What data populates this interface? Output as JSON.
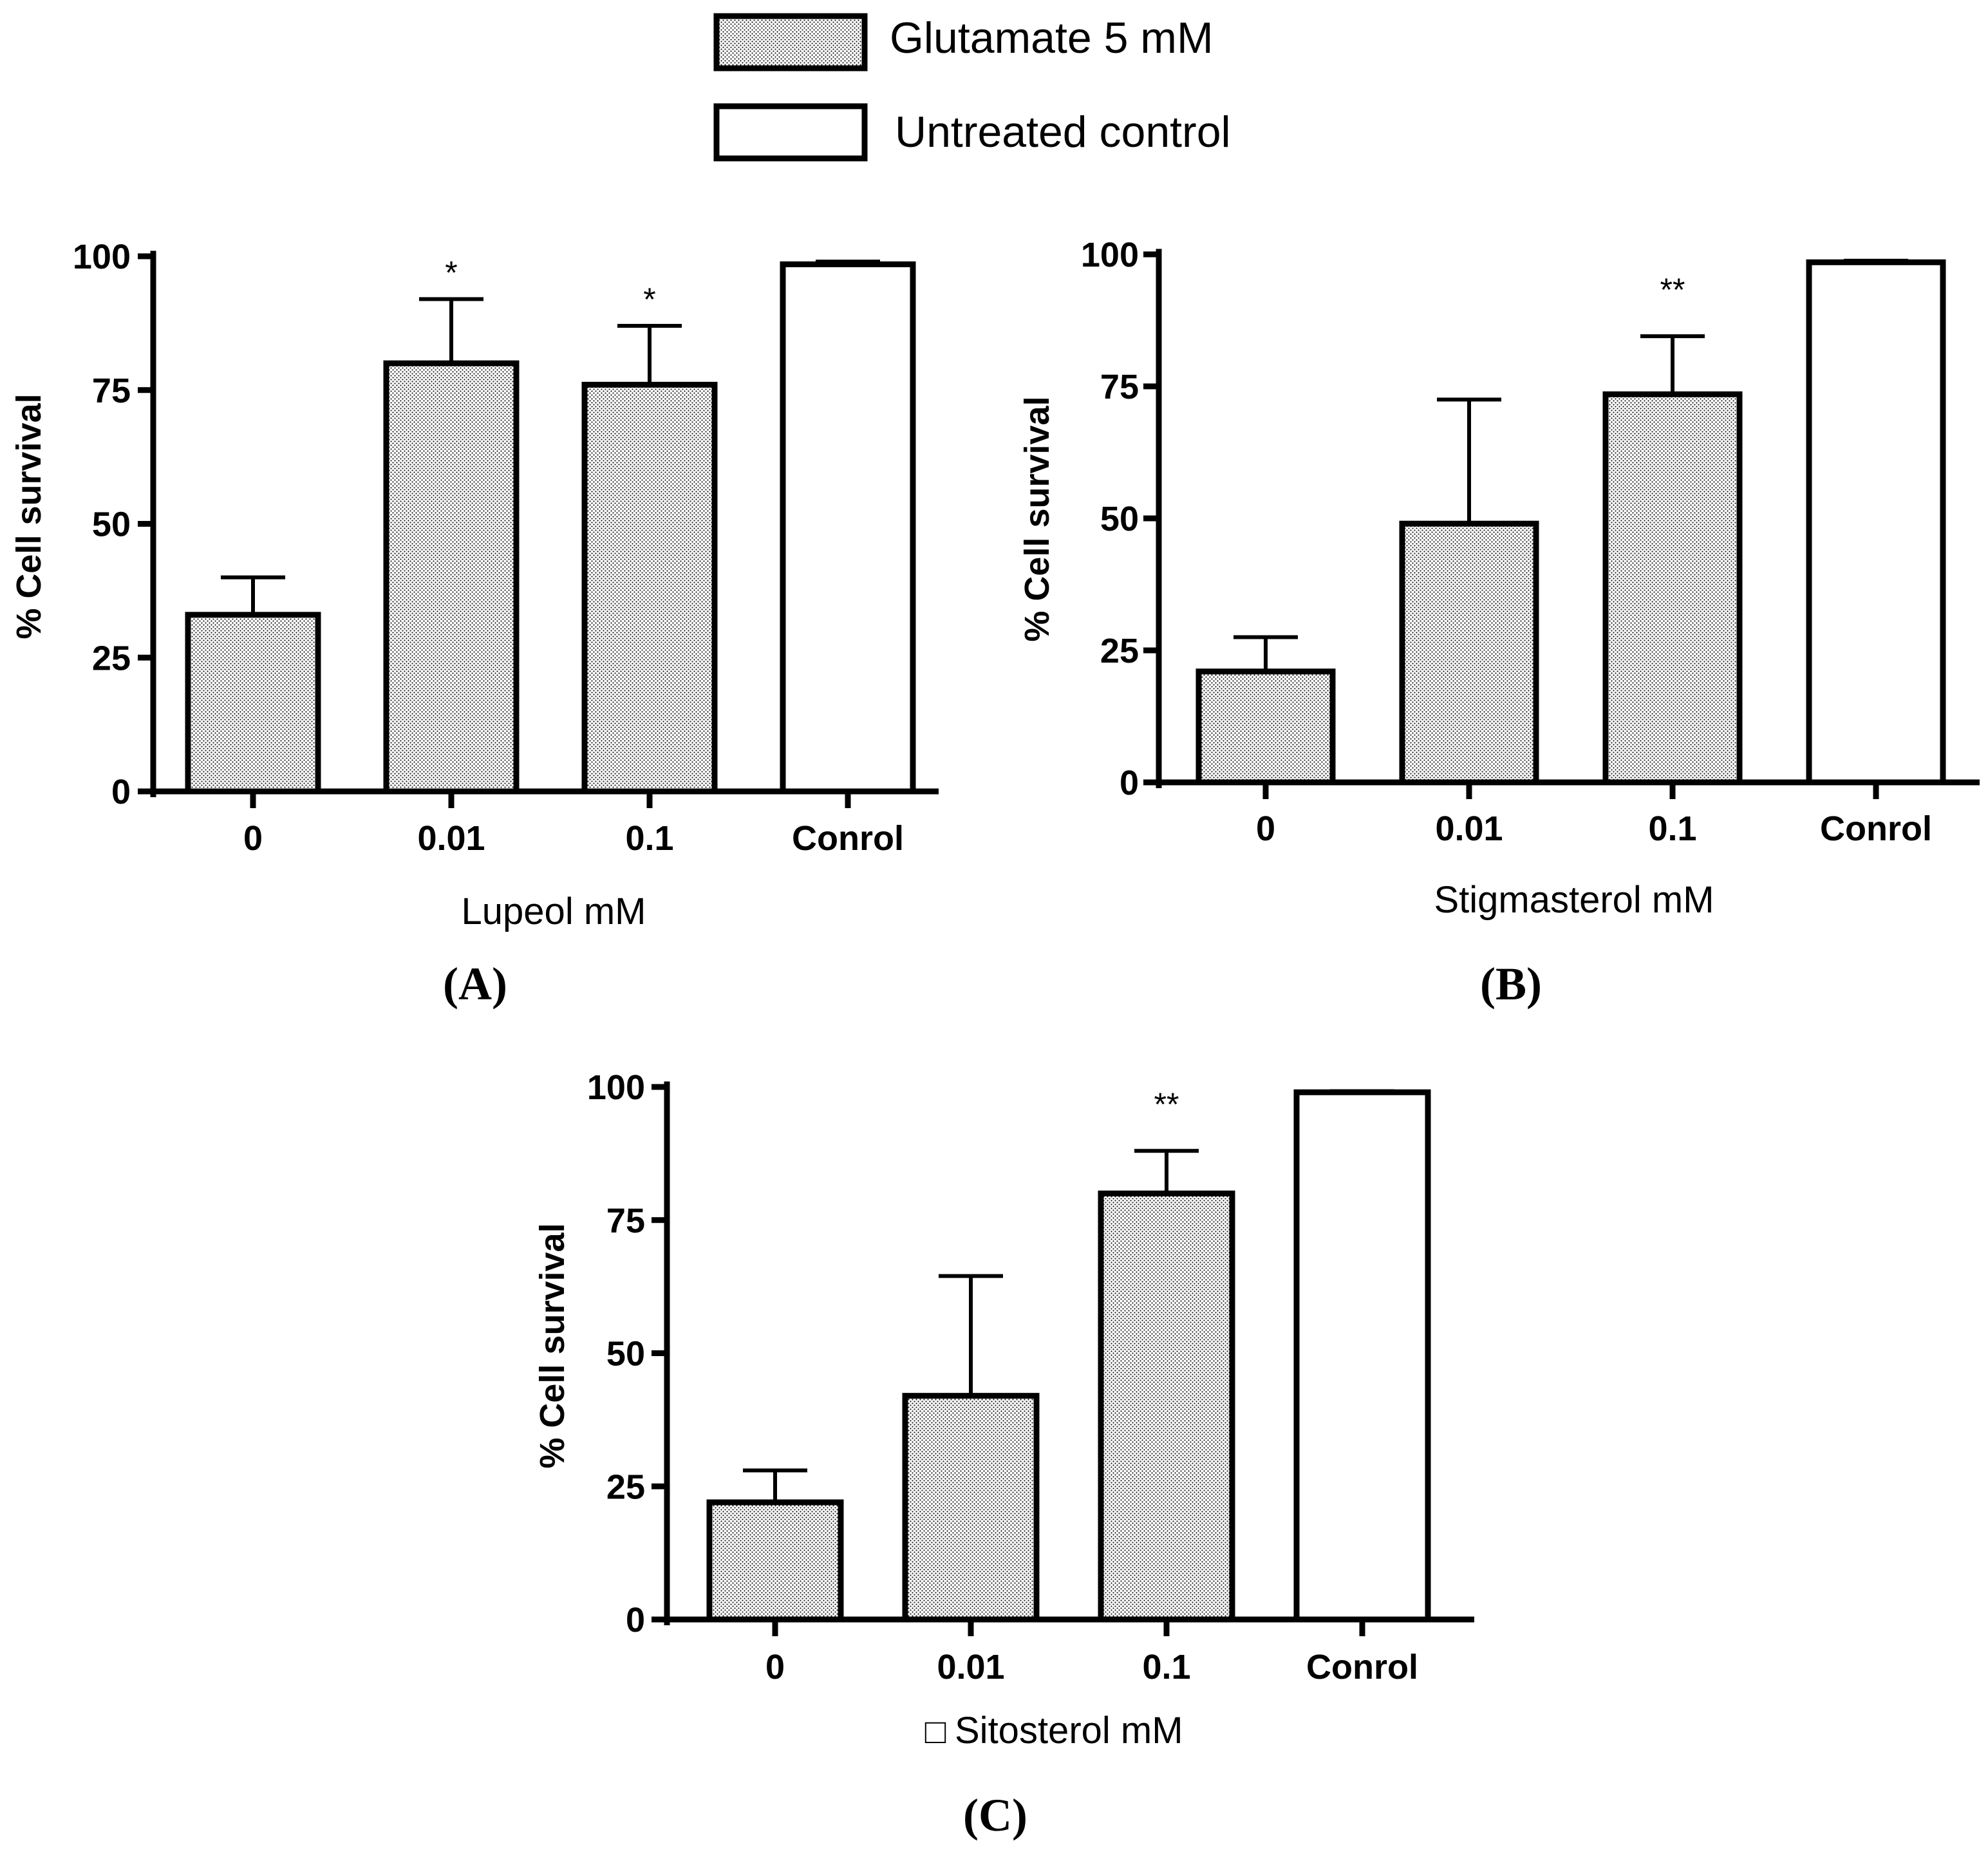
{
  "colors": {
    "ink": "#000000",
    "background": "#ffffff",
    "treated_fill": "dotted-gray",
    "control_fill": "#ffffff"
  },
  "legend": {
    "items": [
      {
        "label": "Glutamate 5 mM",
        "style": "dotted"
      },
      {
        "label": "Untreated control",
        "style": "white"
      }
    ],
    "placement": "top-center"
  },
  "chart_data": [
    {
      "panel_label": "(A)",
      "type": "bar",
      "xlabel": "Lupeol mM",
      "ylabel": "% Cell survival",
      "ylim": [
        0,
        100
      ],
      "yticks": [
        0,
        25,
        50,
        75,
        100
      ],
      "categories": [
        "0",
        "0.01",
        "0.1",
        "Conrol"
      ],
      "values": [
        33,
        80,
        76,
        98.5
      ],
      "errors": [
        7,
        12,
        11,
        0.5
      ],
      "fills": [
        "dotted",
        "dotted",
        "dotted",
        "white"
      ],
      "significance": [
        "",
        "*",
        "*",
        ""
      ]
    },
    {
      "panel_label": "(B)",
      "type": "bar",
      "xlabel": "Stigmasterol mM",
      "ylabel": "% Cell survival",
      "ylim": [
        0,
        100
      ],
      "yticks": [
        0,
        25,
        50,
        75,
        100
      ],
      "categories": [
        "0",
        "0.01",
        "0.1",
        "Conrol"
      ],
      "values": [
        21,
        49,
        73.5,
        98.5
      ],
      "errors": [
        6.5,
        23.5,
        11,
        0.3
      ],
      "fills": [
        "dotted",
        "dotted",
        "dotted",
        "white"
      ],
      "significance": [
        "",
        "",
        "**",
        ""
      ]
    },
    {
      "panel_label": "(C)",
      "type": "bar",
      "xlabel": "Sitosterol mM",
      "xlabel_prefix_glyph": "□",
      "ylabel": "% Cell survival",
      "ylim": [
        0,
        100
      ],
      "yticks": [
        0,
        25,
        50,
        75,
        100
      ],
      "categories": [
        "0",
        "0.01",
        "0.1",
        "Conrol"
      ],
      "values": [
        22,
        42,
        80,
        99
      ],
      "errors": [
        6,
        22.5,
        8,
        0.2
      ],
      "fills": [
        "dotted",
        "dotted",
        "dotted",
        "white"
      ],
      "significance": [
        "",
        "",
        "**",
        ""
      ]
    }
  ]
}
